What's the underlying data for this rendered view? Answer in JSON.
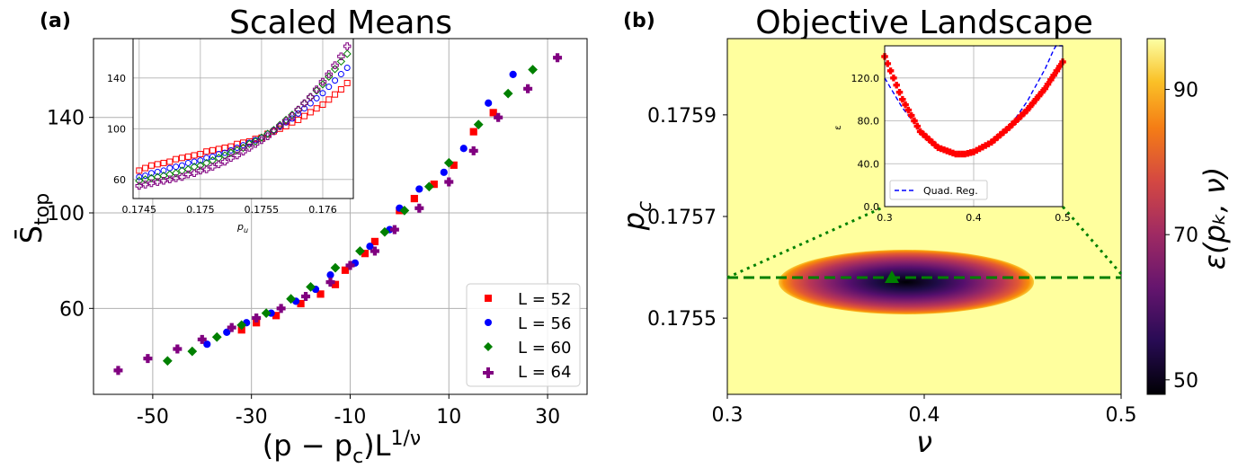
{
  "colors": {
    "L52": "#ff0000",
    "L56": "#0000ff",
    "L60": "#008000",
    "L64": "#800080",
    "grid": "#b0b0b0",
    "dash": "#008000",
    "reg": "#0000ff",
    "highlight": "#ffff9e"
  },
  "panel_a": {
    "label": "(a)",
    "title": "Scaled Means",
    "xlabel": "(p − pₖ)L¹ᐟᵛ",
    "xlabel_main": "(p − p",
    "xlabel_sub": "c",
    "xlabel_tail": ")L",
    "xlabel_sup": "1/ν",
    "ylabel_main": "S̄",
    "ylabel_sub": "top",
    "xticks": [
      "-50",
      "-30",
      "-10",
      "10",
      "30"
    ],
    "yticks": [
      "60",
      "100",
      "140"
    ],
    "legend": [
      "L = 52",
      "L = 56",
      "L = 60",
      "L = 64"
    ]
  },
  "panel_a_inset": {
    "xlabel": "p",
    "xlabel_sub": "u",
    "xticks": [
      "0.1745",
      "0.175",
      "0.1755",
      "0.176"
    ],
    "yticks": [
      "60",
      "100",
      "140"
    ]
  },
  "panel_b": {
    "label": "(b)",
    "title": "Objective Landscape",
    "xlabel": "ν",
    "ylabel_main": "p",
    "ylabel_sub": "c",
    "xticks": [
      "0.3",
      "0.4",
      "0.5"
    ],
    "yticks": [
      "0.1755",
      "0.1757",
      "0.1759"
    ],
    "colorbar_label": "ε(pₖ, ν)",
    "colorbar_ticks": [
      "50",
      "70",
      "90"
    ]
  },
  "panel_b_inset": {
    "ylabel": "ε",
    "xticks": [
      "0.3",
      "0.4",
      "0.5"
    ],
    "yticks": [
      "0.0",
      "40.0",
      "80.0",
      "120.0"
    ],
    "legend": "Quad. Reg."
  },
  "chart_data": [
    {
      "type": "scatter",
      "title": "Scaled Means",
      "xlabel": "(p - p_c)L^{1/ν}",
      "ylabel": "S̄_top",
      "xlim": [
        -62,
        38
      ],
      "ylim": [
        24,
        173
      ],
      "grid": true,
      "legend_position": "bottom-right",
      "series": [
        {
          "name": "L = 52",
          "marker": "square",
          "points": [
            [
              -32,
              51
            ],
            [
              -29,
              54
            ],
            [
              -25,
              57
            ],
            [
              -20,
              62
            ],
            [
              -16,
              66
            ],
            [
              -13,
              70
            ],
            [
              -11,
              76
            ],
            [
              -7,
              83
            ],
            [
              -5,
              88
            ],
            [
              0,
              101
            ],
            [
              3,
              106
            ],
            [
              7,
              112
            ],
            [
              11,
              120
            ],
            [
              15,
              134
            ],
            [
              19,
              142
            ]
          ]
        },
        {
          "name": "L = 56",
          "marker": "circle",
          "points": [
            [
              -39,
              45
            ],
            [
              -35,
              50
            ],
            [
              -31,
              54
            ],
            [
              -26,
              58
            ],
            [
              -21,
              63
            ],
            [
              -17,
              68
            ],
            [
              -14,
              74
            ],
            [
              -9,
              79
            ],
            [
              -6,
              86
            ],
            [
              -2,
              93
            ],
            [
              0,
              102
            ],
            [
              4,
              110
            ],
            [
              9,
              117
            ],
            [
              13,
              127
            ],
            [
              18,
              146
            ],
            [
              23,
              158
            ]
          ]
        },
        {
          "name": "L = 60",
          "marker": "diamond",
          "points": [
            [
              -47,
              38
            ],
            [
              -42,
              42
            ],
            [
              -37,
              48
            ],
            [
              -32,
              53
            ],
            [
              -27,
              58
            ],
            [
              -22,
              64
            ],
            [
              -18,
              69
            ],
            [
              -13,
              77
            ],
            [
              -8,
              84
            ],
            [
              -3,
              92
            ],
            [
              1,
              101
            ],
            [
              6,
              111
            ],
            [
              10,
              121
            ],
            [
              16,
              137
            ],
            [
              22,
              150
            ],
            [
              27,
              160
            ]
          ]
        },
        {
          "name": "L = 64",
          "marker": "plus",
          "points": [
            [
              -57,
              34
            ],
            [
              -51,
              39
            ],
            [
              -45,
              43
            ],
            [
              -40,
              47
            ],
            [
              -34,
              52
            ],
            [
              -29,
              56
            ],
            [
              -24,
              60
            ],
            [
              -19,
              65
            ],
            [
              -14,
              71
            ],
            [
              -10,
              78
            ],
            [
              -5,
              84
            ],
            [
              -1,
              93
            ],
            [
              4,
              102
            ],
            [
              10,
              113
            ],
            [
              15,
              126
            ],
            [
              20,
              140
            ],
            [
              26,
              152
            ],
            [
              32,
              165
            ]
          ]
        }
      ]
    },
    {
      "type": "scatter",
      "title": "",
      "xlabel": "p_u",
      "ylabel": "",
      "xlim": [
        0.17445,
        0.17625
      ],
      "ylim": [
        45,
        171
      ],
      "grid": true,
      "series": [
        {
          "name": "L = 52",
          "marker": "open-square",
          "x": [
            0.1745,
            0.17455,
            0.1746,
            0.17465,
            0.1747,
            0.17475,
            0.1748,
            0.17485,
            0.1749,
            0.17495,
            0.175,
            0.17505,
            0.1751,
            0.17515,
            0.1752,
            0.17525,
            0.1753,
            0.17535,
            0.1754,
            0.17545,
            0.1755,
            0.17555,
            0.1756,
            0.17565,
            0.1757,
            0.17575,
            0.1758,
            0.17585,
            0.1759,
            0.17595,
            0.176,
            0.17605,
            0.1761,
            0.17615,
            0.1762
          ],
          "y": [
            67,
            69,
            71,
            72,
            73,
            74,
            76,
            77,
            78,
            79,
            80,
            82,
            83,
            84,
            85,
            86,
            88,
            89,
            90,
            92,
            93,
            96,
            98,
            100,
            102,
            105,
            107,
            110,
            113,
            116,
            119,
            123,
            127,
            131,
            136
          ]
        },
        {
          "name": "L = 56",
          "marker": "open-circle",
          "x": [
            0.1745,
            0.17455,
            0.1746,
            0.17465,
            0.1747,
            0.17475,
            0.1748,
            0.17485,
            0.1749,
            0.17495,
            0.175,
            0.17505,
            0.1751,
            0.17515,
            0.1752,
            0.17525,
            0.1753,
            0.17535,
            0.1754,
            0.17545,
            0.1755,
            0.17555,
            0.1756,
            0.17565,
            0.1757,
            0.17575,
            0.1758,
            0.17585,
            0.1759,
            0.17595,
            0.176,
            0.17605,
            0.1761,
            0.17615,
            0.1762
          ],
          "y": [
            62,
            63,
            65,
            66,
            67,
            69,
            70,
            71,
            73,
            74,
            75,
            77,
            78,
            80,
            81,
            83,
            85,
            87,
            89,
            91,
            93,
            96,
            99,
            102,
            105,
            108,
            112,
            116,
            120,
            124,
            128,
            133,
            138,
            143,
            148
          ]
        },
        {
          "name": "L = 60",
          "marker": "open-diamond",
          "x": [
            0.1745,
            0.17455,
            0.1746,
            0.17465,
            0.1747,
            0.17475,
            0.1748,
            0.17485,
            0.1749,
            0.17495,
            0.175,
            0.17505,
            0.1751,
            0.17515,
            0.1752,
            0.17525,
            0.1753,
            0.17535,
            0.1754,
            0.17545,
            0.1755,
            0.17555,
            0.1756,
            0.17565,
            0.1757,
            0.17575,
            0.1758,
            0.17585,
            0.1759,
            0.17595,
            0.176,
            0.17605,
            0.1761,
            0.17615,
            0.1762
          ],
          "y": [
            59,
            60,
            61,
            62,
            63,
            64,
            65,
            67,
            68,
            70,
            71,
            73,
            75,
            77,
            79,
            81,
            83,
            85,
            88,
            90,
            93,
            96,
            99,
            103,
            107,
            111,
            115,
            120,
            125,
            130,
            135,
            141,
            147,
            153,
            159
          ]
        },
        {
          "name": "L = 64",
          "marker": "open-plus",
          "x": [
            0.1745,
            0.17455,
            0.1746,
            0.17465,
            0.1747,
            0.17475,
            0.1748,
            0.17485,
            0.1749,
            0.17495,
            0.175,
            0.17505,
            0.1751,
            0.17515,
            0.1752,
            0.17525,
            0.1753,
            0.17535,
            0.1754,
            0.17545,
            0.1755,
            0.17555,
            0.1756,
            0.17565,
            0.1757,
            0.17575,
            0.1758,
            0.17585,
            0.1759,
            0.17595,
            0.176,
            0.17605,
            0.1761,
            0.17615,
            0.1762
          ],
          "y": [
            55,
            56,
            57,
            58,
            59,
            60,
            61,
            62,
            64,
            65,
            67,
            68,
            70,
            72,
            74,
            77,
            79,
            82,
            85,
            88,
            91,
            94,
            98,
            102,
            106,
            110,
            115,
            120,
            125,
            131,
            137,
            143,
            150,
            157,
            165
          ]
        }
      ]
    },
    {
      "type": "heatmap",
      "title": "Objective Landscape",
      "xlabel": "ν",
      "ylabel": "p_c",
      "xlim": [
        0.3,
        0.5
      ],
      "ylim": [
        0.17535,
        0.17605
      ],
      "colorbar": {
        "label": "ε(p_c, ν)",
        "range": [
          48,
          97
        ],
        "ticks": [
          50,
          70,
          90
        ],
        "colormap": "inferno"
      },
      "minimum": {
        "nu": 0.384,
        "p_c": 0.17558,
        "marker": "triangle"
      },
      "guide_line_p_c": 0.17558,
      "grid": false
    },
    {
      "type": "line",
      "title": "",
      "xlabel": "",
      "ylabel": "ε",
      "xlim": [
        0.3,
        0.5
      ],
      "ylim": [
        0,
        150
      ],
      "grid": true,
      "legend_position": "bottom-left",
      "series": [
        {
          "name": "",
          "marker": "plus",
          "x": [
            0.3,
            0.32,
            0.34,
            0.36,
            0.38,
            0.39,
            0.4,
            0.42,
            0.44,
            0.46,
            0.48,
            0.5
          ],
          "y": [
            140,
            100,
            70,
            55,
            49,
            49,
            51,
            60,
            74,
            90,
            110,
            135
          ]
        },
        {
          "name": "Quad. Reg.",
          "style": "dashed",
          "x": [
            0.3,
            0.32,
            0.34,
            0.36,
            0.38,
            0.39,
            0.4,
            0.42,
            0.44,
            0.46,
            0.48,
            0.5
          ],
          "y": [
            120,
            92,
            71,
            57,
            50,
            49,
            50,
            58,
            74,
            98,
            128,
            165
          ]
        }
      ]
    }
  ]
}
